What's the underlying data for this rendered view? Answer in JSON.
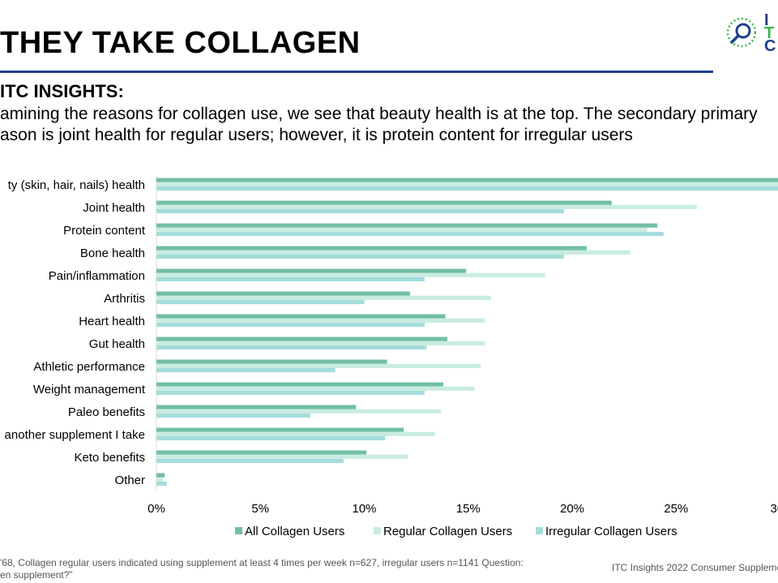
{
  "header": {
    "title": "THEY TAKE COLLAGEN",
    "logo_letters": [
      "I",
      "T",
      "C"
    ]
  },
  "insights": {
    "heading": "ITC INSIGHTS:",
    "line1": "amining the reasons for collagen use, we see that beauty health is at the top. The secondary primary",
    "line2": "ason is joint health for regular users; however, it is protein content for irregular users"
  },
  "chart_data": {
    "type": "bar",
    "orientation": "horizontal",
    "categories": [
      "ty (skin, hair, nails) health",
      "Joint health",
      "Protein content",
      "Bone health",
      "Pain/inflammation",
      "Arthritis",
      "Heart health",
      "Gut health",
      "Athletic performance",
      "Weight management",
      "Paleo benefits",
      "another supplement I take",
      "Keto benefits",
      "Other"
    ],
    "series": [
      {
        "name": "All Collagen Users",
        "color": "#72bfa5",
        "values": [
          30.5,
          21.9,
          24.1,
          20.7,
          14.9,
          12.2,
          13.9,
          14.0,
          11.1,
          13.8,
          9.6,
          11.9,
          10.1,
          0.4
        ]
      },
      {
        "name": "Regular Collagen Users",
        "color": "#c9ece1",
        "values": [
          30.5,
          26.0,
          23.6,
          22.8,
          18.7,
          16.1,
          15.8,
          15.8,
          15.6,
          15.3,
          13.7,
          13.4,
          12.1,
          0.3
        ]
      },
      {
        "name": "Irregular Collagen Users",
        "color": "#a6dcdc",
        "values": [
          30.5,
          19.6,
          24.4,
          19.6,
          12.9,
          10.0,
          12.9,
          13.0,
          8.6,
          12.9,
          7.4,
          11.0,
          9.0,
          0.5
        ]
      }
    ],
    "x_ticks": [
      "0%",
      "5%",
      "10%",
      "15%",
      "20%",
      "25%",
      "30"
    ],
    "xlim": [
      0,
      30
    ],
    "grid": false,
    "legend_position": "bottom"
  },
  "footer": {
    "note_line1": "'68, Collagen regular users indicated using supplement at least 4 times per week n=627, irregular users n=1141 Question:",
    "note_line2": "en supplement?”",
    "source": "ITC Insights 2022 Consumer Suppleme"
  }
}
